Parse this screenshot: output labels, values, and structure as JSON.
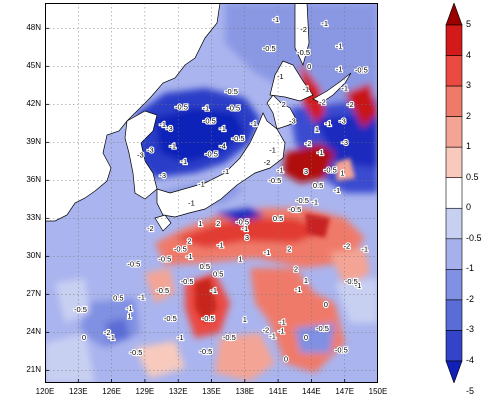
{
  "map": {
    "lon_min": 120,
    "lon_max": 150,
    "lat_min": 20,
    "lat_max": 50,
    "x_ticks": [
      "120E",
      "123E",
      "126E",
      "129E",
      "132E",
      "135E",
      "138E",
      "141E",
      "144E",
      "147E",
      "150E"
    ],
    "y_ticks": [
      "21N",
      "24N",
      "27N",
      "30N",
      "33N",
      "36N",
      "39N",
      "42N",
      "45N",
      "48N"
    ],
    "x_tick_values": [
      120,
      123,
      126,
      129,
      132,
      135,
      138,
      141,
      144,
      147,
      150
    ],
    "y_tick_values": [
      21,
      24,
      27,
      30,
      33,
      36,
      39,
      42,
      45,
      48
    ],
    "grid": "dotted"
  },
  "colorbar": {
    "levels": [
      "5",
      "4",
      "3",
      "2",
      "1",
      "0.5",
      "0",
      "-0.5",
      "-1",
      "-2",
      "-3",
      "-4",
      "-5"
    ],
    "colors": [
      "#9b0000",
      "#d21a1a",
      "#ea4a42",
      "#f07a6a",
      "#f4a494",
      "#f8cabd",
      "#ffffff",
      "#c8d0f2",
      "#a6b0ec",
      "#8090e2",
      "#5a6cd6",
      "#3344c8",
      "#1020b8"
    ]
  },
  "contour_labels": [
    {
      "t": "-1",
      "lon": 140.8,
      "lat": 48.5
    },
    {
      "t": "-2",
      "lon": 143.3,
      "lat": 47.7
    },
    {
      "t": "-1",
      "lon": 145.2,
      "lat": 48.2
    },
    {
      "t": "-1",
      "lon": 146.5,
      "lat": 46.4
    },
    {
      "t": "-0.5",
      "lon": 140.2,
      "lat": 46.2
    },
    {
      "t": "-0.5",
      "lon": 143.3,
      "lat": 45.9
    },
    {
      "t": "0",
      "lon": 143.8,
      "lat": 44.8
    },
    {
      "t": "-1",
      "lon": 146.5,
      "lat": 44.6
    },
    {
      "t": "-0.5",
      "lon": 148.5,
      "lat": 44.5
    },
    {
      "t": "-1",
      "lon": 141.2,
      "lat": 44.0
    },
    {
      "t": "-1",
      "lon": 143.5,
      "lat": 43.0
    },
    {
      "t": "-1",
      "lon": 147.0,
      "lat": 43.1
    },
    {
      "t": "-0.5",
      "lon": 136.8,
      "lat": 42.8
    },
    {
      "t": "-0.5",
      "lon": 137.0,
      "lat": 41.5
    },
    {
      "t": "-1",
      "lon": 134.5,
      "lat": 41.5
    },
    {
      "t": "-0.5",
      "lon": 132.3,
      "lat": 41.6
    },
    {
      "t": "-0.5",
      "lon": 134.8,
      "lat": 40.5
    },
    {
      "t": "-1",
      "lon": 138.8,
      "lat": 40.3
    },
    {
      "t": "2",
      "lon": 141.5,
      "lat": 41.8
    },
    {
      "t": "-2",
      "lon": 145.0,
      "lat": 42.0
    },
    {
      "t": "-2",
      "lon": 147.5,
      "lat": 41.8
    },
    {
      "t": "-1",
      "lon": 130.6,
      "lat": 40.2
    },
    {
      "t": "-3",
      "lon": 131.2,
      "lat": 39.9
    },
    {
      "t": "-1",
      "lon": 136.0,
      "lat": 39.9
    },
    {
      "t": "-3",
      "lon": 142.3,
      "lat": 40.5
    },
    {
      "t": "-1",
      "lon": 145.5,
      "lat": 40.3
    },
    {
      "t": "1",
      "lon": 144.5,
      "lat": 39.8
    },
    {
      "t": "-3",
      "lon": 146.8,
      "lat": 40.5
    },
    {
      "t": "-4",
      "lon": 136.0,
      "lat": 38.5
    },
    {
      "t": "-0.5",
      "lon": 137.4,
      "lat": 39.1
    },
    {
      "t": "-3",
      "lon": 129.5,
      "lat": 38.2
    },
    {
      "t": "-3",
      "lon": 128.6,
      "lat": 37.8
    },
    {
      "t": "-1",
      "lon": 131.5,
      "lat": 38.5
    },
    {
      "t": "-0.5",
      "lon": 135.0,
      "lat": 37.9
    },
    {
      "t": "-2",
      "lon": 140.0,
      "lat": 37.2
    },
    {
      "t": "-1",
      "lon": 140.5,
      "lat": 38.2
    },
    {
      "t": "-2",
      "lon": 143.7,
      "lat": 38.7
    },
    {
      "t": "-1",
      "lon": 144.8,
      "lat": 38.0
    },
    {
      "t": "-3",
      "lon": 147.0,
      "lat": 38.8
    },
    {
      "t": "-1",
      "lon": 132.5,
      "lat": 37.3
    },
    {
      "t": "-1",
      "lon": 136.3,
      "lat": 36.5
    },
    {
      "t": "-1",
      "lon": 141.2,
      "lat": 36.6
    },
    {
      "t": "3",
      "lon": 143.5,
      "lat": 36.5
    },
    {
      "t": "-0.5",
      "lon": 145.7,
      "lat": 36.6
    },
    {
      "t": "1",
      "lon": 146.8,
      "lat": 36.4
    },
    {
      "t": "-3",
      "lon": 130.6,
      "lat": 36.2
    },
    {
      "t": "-1",
      "lon": 134.1,
      "lat": 35.5
    },
    {
      "t": "-0.5",
      "lon": 140.7,
      "lat": 35.8
    },
    {
      "t": "0.5",
      "lon": 144.6,
      "lat": 35.4
    },
    {
      "t": "-1",
      "lon": 146.3,
      "lat": 35.0
    },
    {
      "t": "-0.5",
      "lon": 143.2,
      "lat": 34.2
    },
    {
      "t": "-1",
      "lon": 144.3,
      "lat": 34.1
    },
    {
      "t": "-1",
      "lon": 133.2,
      "lat": 34.0
    },
    {
      "t": "-0.5",
      "lon": 142.5,
      "lat": 33.5
    },
    {
      "t": "-0.5",
      "lon": 137.8,
      "lat": 32.5
    },
    {
      "t": "0.5",
      "lon": 141.0,
      "lat": 32.8
    },
    {
      "t": "-1",
      "lon": 138.0,
      "lat": 32.0
    },
    {
      "t": "2",
      "lon": 135.6,
      "lat": 32.4
    },
    {
      "t": "1",
      "lon": 134.0,
      "lat": 32.4
    },
    {
      "t": "3",
      "lon": 138.2,
      "lat": 31.3
    },
    {
      "t": "-2",
      "lon": 129.5,
      "lat": 32.0
    },
    {
      "t": "2",
      "lon": 133.0,
      "lat": 31.0
    },
    {
      "t": "-1",
      "lon": 135.8,
      "lat": 30.7
    },
    {
      "t": "-0.5",
      "lon": 132.2,
      "lat": 30.4
    },
    {
      "t": "-1",
      "lon": 140.0,
      "lat": 30.1
    },
    {
      "t": "2",
      "lon": 142.0,
      "lat": 30.4
    },
    {
      "t": "-2",
      "lon": 147.2,
      "lat": 30.6
    },
    {
      "t": "-1",
      "lon": 148.8,
      "lat": 30.4
    },
    {
      "t": "-1",
      "lon": 133.0,
      "lat": 29.8
    },
    {
      "t": "-0.5",
      "lon": 130.8,
      "lat": 29.6
    },
    {
      "t": "0.5",
      "lon": 134.4,
      "lat": 29.0
    },
    {
      "t": "1",
      "lon": 137.6,
      "lat": 29.6
    },
    {
      "t": "-0.5",
      "lon": 128.0,
      "lat": 29.2
    },
    {
      "t": "0.5",
      "lon": 135.6,
      "lat": 28.4
    },
    {
      "t": "2",
      "lon": 142.6,
      "lat": 28.8
    },
    {
      "t": "1",
      "lon": 143.5,
      "lat": 27.9
    },
    {
      "t": "-0.5",
      "lon": 147.6,
      "lat": 27.8
    },
    {
      "t": "-1",
      "lon": 148.2,
      "lat": 27.5
    },
    {
      "t": "-0.5",
      "lon": 132.8,
      "lat": 27.8
    },
    {
      "t": "-1",
      "lon": 135.2,
      "lat": 27.1
    },
    {
      "t": "-0.5",
      "lon": 130.6,
      "lat": 27.1
    },
    {
      "t": "-1",
      "lon": 142.8,
      "lat": 27.2
    },
    {
      "t": "0",
      "lon": 145.3,
      "lat": 26.0
    },
    {
      "t": "-1",
      "lon": 128.7,
      "lat": 26.6
    },
    {
      "t": "0.5",
      "lon": 126.6,
      "lat": 26.5
    },
    {
      "t": "-1",
      "lon": 127.6,
      "lat": 25.7
    },
    {
      "t": "-0.5",
      "lon": 123.2,
      "lat": 25.6
    },
    {
      "t": "1",
      "lon": 127.6,
      "lat": 25.1
    },
    {
      "t": "-0.5",
      "lon": 131.3,
      "lat": 24.9
    },
    {
      "t": "-0.5",
      "lon": 134.7,
      "lat": 24.9
    },
    {
      "t": "1",
      "lon": 138.0,
      "lat": 24.8
    },
    {
      "t": "-1",
      "lon": 141.4,
      "lat": 24.6
    },
    {
      "t": "-2",
      "lon": 139.9,
      "lat": 24.0
    },
    {
      "t": "-1",
      "lon": 141.3,
      "lat": 23.9
    },
    {
      "t": "-0.5",
      "lon": 145.0,
      "lat": 24.1
    },
    {
      "t": "-1",
      "lon": 140.5,
      "lat": 23.5
    },
    {
      "t": "-2",
      "lon": 125.6,
      "lat": 23.8
    },
    {
      "t": "-1",
      "lon": 126.0,
      "lat": 23.4
    },
    {
      "t": "0",
      "lon": 123.5,
      "lat": 23.4
    },
    {
      "t": "-1",
      "lon": 132.2,
      "lat": 23.4
    },
    {
      "t": "-0.5",
      "lon": 136.6,
      "lat": 23.4
    },
    {
      "t": "0",
      "lon": 143.5,
      "lat": 23.4
    },
    {
      "t": "-0.5",
      "lon": 128.2,
      "lat": 22.2
    },
    {
      "t": "-0.5",
      "lon": 134.5,
      "lat": 22.3
    },
    {
      "t": "-0.5",
      "lon": 146.7,
      "lat": 22.4
    },
    {
      "t": "0",
      "lon": 141.7,
      "lat": 21.7
    }
  ]
}
